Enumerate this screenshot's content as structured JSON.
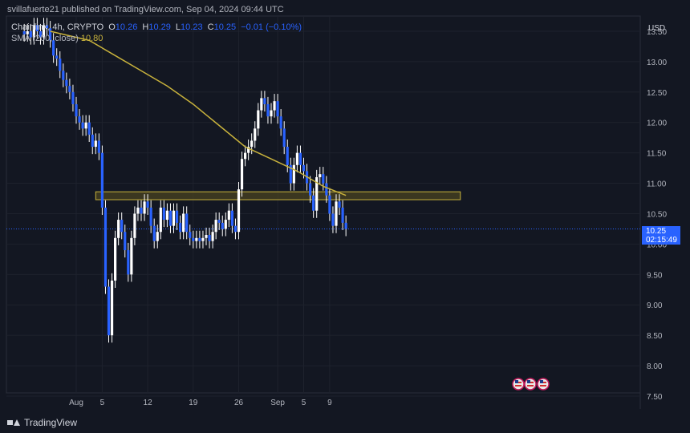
{
  "header": {
    "text": "svillafuerte21 published on TradingView.com, Sep 04, 2024 09:44 UTC"
  },
  "legend": {
    "symbol": "Chainlink, 4h, CRYPTO",
    "open_label": "O",
    "open": "10.26",
    "high_label": "H",
    "high": "10.29",
    "low_label": "L",
    "low": "10.23",
    "close_label": "C",
    "close": "10.25",
    "change": "−0.01 (−0.10%)",
    "sma_label": "SMA (200, close)",
    "sma_value": "10.80"
  },
  "currency": "USD",
  "last_price": {
    "value": "10.25",
    "countdown": "02:15:49"
  },
  "footer": {
    "brand": "TradingView"
  },
  "colors": {
    "background": "#131722",
    "candle": "#2962ff",
    "candle_wick": "#ffffff",
    "sma": "#c8b23c",
    "zone_border": "#c8b23c",
    "zone_fill": "#4a4320",
    "grid": "#1e222d",
    "text": "#d1d4dc"
  },
  "chart_data": {
    "type": "candlestick",
    "interval": "4h",
    "ylim": [
      7.5,
      13.75
    ],
    "y_ticks": [
      "13.50",
      "13.00",
      "12.50",
      "12.00",
      "11.50",
      "11.00",
      "10.50",
      "10.00",
      "9.50",
      "9.00",
      "8.50",
      "8.00",
      "7.50"
    ],
    "x_ticks": [
      {
        "label": "Aug",
        "day": 0
      },
      {
        "label": "5",
        "day": 4
      },
      {
        "label": "12",
        "day": 11
      },
      {
        "label": "19",
        "day": 18
      },
      {
        "label": "26",
        "day": 25
      },
      {
        "label": "Sep",
        "day": 31
      },
      {
        "label": "5",
        "day": 35
      },
      {
        "label": "9",
        "day": 39
      }
    ],
    "closes": [
      {
        "day": -8,
        "close": 13.45
      },
      {
        "day": -7.5,
        "close": 13.5
      },
      {
        "day": -7,
        "close": 13.4
      },
      {
        "day": -6.5,
        "close": 13.6
      },
      {
        "day": -6,
        "close": 13.5
      },
      {
        "day": -5.5,
        "close": 13.4
      },
      {
        "day": -5,
        "close": 13.6
      },
      {
        "day": -4.5,
        "close": 13.55
      },
      {
        "day": -4,
        "close": 13.35
      },
      {
        "day": -3.5,
        "close": 13.1
      },
      {
        "day": -3,
        "close": 13.05
      },
      {
        "day": -2.5,
        "close": 12.85
      },
      {
        "day": -2,
        "close": 12.7
      },
      {
        "day": -1.5,
        "close": 12.6
      },
      {
        "day": -1,
        "close": 12.5
      },
      {
        "day": -0.5,
        "close": 12.3
      },
      {
        "day": 0,
        "close": 12.1
      },
      {
        "day": 0.5,
        "close": 12.0
      },
      {
        "day": 1,
        "close": 11.9
      },
      {
        "day": 1.5,
        "close": 12.0
      },
      {
        "day": 2,
        "close": 11.8
      },
      {
        "day": 2.5,
        "close": 11.6
      },
      {
        "day": 3,
        "close": 11.7
      },
      {
        "day": 3.5,
        "close": 11.5
      },
      {
        "day": 4,
        "close": 10.6
      },
      {
        "day": 4.5,
        "close": 9.3
      },
      {
        "day": 5,
        "close": 8.5
      },
      {
        "day": 5.5,
        "close": 9.4
      },
      {
        "day": 6,
        "close": 10.1
      },
      {
        "day": 6.5,
        "close": 10.4
      },
      {
        "day": 7,
        "close": 10.2
      },
      {
        "day": 7.5,
        "close": 9.9
      },
      {
        "day": 8,
        "close": 9.5
      },
      {
        "day": 8.5,
        "close": 10.1
      },
      {
        "day": 9,
        "close": 10.5
      },
      {
        "day": 9.5,
        "close": 10.6
      },
      {
        "day": 10,
        "close": 10.5
      },
      {
        "day": 10.5,
        "close": 10.7
      },
      {
        "day": 11,
        "close": 10.6
      },
      {
        "day": 11.5,
        "close": 10.3
      },
      {
        "day": 12,
        "close": 10.05
      },
      {
        "day": 12.5,
        "close": 10.2
      },
      {
        "day": 13,
        "close": 10.6
      },
      {
        "day": 13.5,
        "close": 10.4
      },
      {
        "day": 14,
        "close": 10.55
      },
      {
        "day": 14.5,
        "close": 10.3
      },
      {
        "day": 15,
        "close": 10.55
      },
      {
        "day": 15.5,
        "close": 10.35
      },
      {
        "day": 16,
        "close": 10.2
      },
      {
        "day": 16.5,
        "close": 10.5
      },
      {
        "day": 17,
        "close": 10.2
      },
      {
        "day": 17.5,
        "close": 10.1
      },
      {
        "day": 18,
        "close": 10.05
      },
      {
        "day": 18.5,
        "close": 10.1
      },
      {
        "day": 19,
        "close": 10.05
      },
      {
        "day": 19.5,
        "close": 10.1
      },
      {
        "day": 20,
        "close": 10.15
      },
      {
        "day": 20.5,
        "close": 10.05
      },
      {
        "day": 21,
        "close": 10.2
      },
      {
        "day": 21.5,
        "close": 10.4
      },
      {
        "day": 22,
        "close": 10.35
      },
      {
        "day": 22.5,
        "close": 10.25
      },
      {
        "day": 23,
        "close": 10.4
      },
      {
        "day": 23.5,
        "close": 10.55
      },
      {
        "day": 24,
        "close": 10.3
      },
      {
        "day": 24.5,
        "close": 10.2
      },
      {
        "day": 25,
        "close": 10.9
      },
      {
        "day": 25.5,
        "close": 11.4
      },
      {
        "day": 26,
        "close": 11.5
      },
      {
        "day": 26.5,
        "close": 11.6
      },
      {
        "day": 27,
        "close": 11.7
      },
      {
        "day": 27.5,
        "close": 11.9
      },
      {
        "day": 28,
        "close": 12.2
      },
      {
        "day": 28.5,
        "close": 12.4
      },
      {
        "day": 29,
        "close": 12.3
      },
      {
        "day": 29.5,
        "close": 12.1
      },
      {
        "day": 30,
        "close": 12.2
      },
      {
        "day": 30.5,
        "close": 12.35
      },
      {
        "day": 31,
        "close": 12.1
      },
      {
        "day": 31.5,
        "close": 11.9
      },
      {
        "day": 32,
        "close": 11.6
      },
      {
        "day": 32.5,
        "close": 11.3
      },
      {
        "day": 33,
        "close": 11.0
      },
      {
        "day": 33.5,
        "close": 11.3
      },
      {
        "day": 34,
        "close": 11.5
      },
      {
        "day": 34.5,
        "close": 11.3
      },
      {
        "day": 35,
        "close": 11.2
      },
      {
        "day": 35.5,
        "close": 11.0
      },
      {
        "day": 36,
        "close": 10.8
      },
      {
        "day": 36.5,
        "close": 10.55
      },
      {
        "day": 37,
        "close": 11.1
      },
      {
        "day": 37.5,
        "close": 11.15
      },
      {
        "day": 38,
        "close": 11.0
      },
      {
        "day": 38.5,
        "close": 10.8
      },
      {
        "day": 39,
        "close": 10.5
      },
      {
        "day": 39.5,
        "close": 10.3
      },
      {
        "day": 40,
        "close": 10.7
      },
      {
        "day": 40.5,
        "close": 10.6
      },
      {
        "day": 41,
        "close": 10.35
      },
      {
        "day": 41.5,
        "close": 10.25
      }
    ],
    "sma_points": [
      {
        "day": -4,
        "value": 13.5
      },
      {
        "day": 2,
        "value": 13.35
      },
      {
        "day": 6,
        "value": 13.1
      },
      {
        "day": 10,
        "value": 12.85
      },
      {
        "day": 14,
        "value": 12.6
      },
      {
        "day": 18,
        "value": 12.3
      },
      {
        "day": 22,
        "value": 11.95
      },
      {
        "day": 26,
        "value": 11.6
      },
      {
        "day": 30,
        "value": 11.4
      },
      {
        "day": 34,
        "value": 11.2
      },
      {
        "day": 38,
        "value": 10.95
      },
      {
        "day": 41.5,
        "value": 10.8
      }
    ],
    "zone": {
      "from_day": 3,
      "to_day": 48,
      "top": 10.86,
      "bottom": 10.73
    },
    "last_close": 10.25
  }
}
